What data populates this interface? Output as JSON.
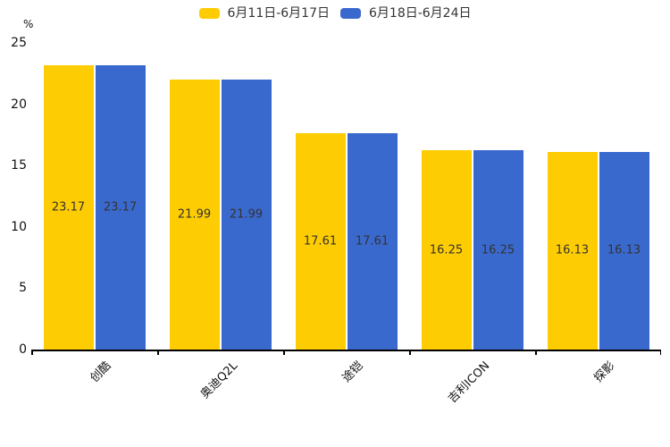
{
  "chart_data": {
    "type": "bar",
    "categories": [
      "创酷",
      "奥迪Q2L",
      "途铠",
      "吉利ICON",
      "探影"
    ],
    "series": [
      {
        "name": "6月11日-6月17日",
        "color": "#FECC02",
        "values": [
          23.17,
          21.99,
          17.61,
          16.25,
          16.13
        ]
      },
      {
        "name": "6月18日-6月24日",
        "color": "#3A69CD",
        "values": [
          23.17,
          21.99,
          17.61,
          16.25,
          16.13
        ]
      }
    ],
    "value_labels": [
      "23.17",
      "21.99",
      "17.61",
      "16.25",
      "16.13"
    ],
    "xlabel": "",
    "ylabel": "%",
    "ylim": [
      0,
      25
    ],
    "yticks": [
      0,
      5,
      10,
      15,
      20,
      25
    ],
    "grid": false,
    "legend_position": "top-center",
    "value_label_position": "inside-middle",
    "axis_color": "#000000",
    "label_color": "#333333"
  }
}
